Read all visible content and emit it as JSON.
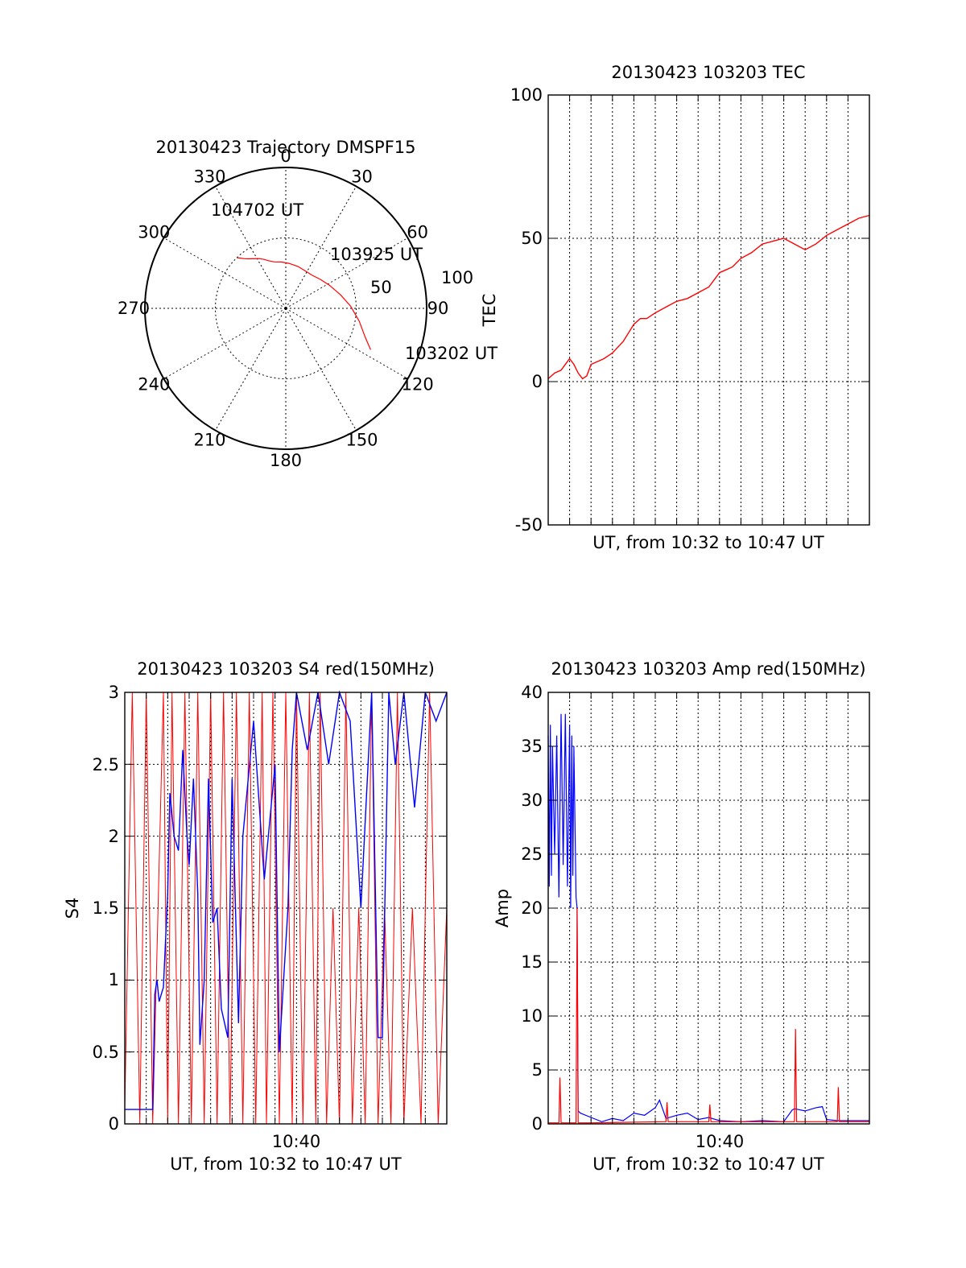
{
  "colors": {
    "red": "#ff0000",
    "blue": "#0000ff",
    "axis": "#000000"
  },
  "chart_data": [
    {
      "type": "polar",
      "title": "20130423 Trajectory DMSPF15",
      "angle_ticks": [
        "0",
        "30",
        "60",
        "90",
        "120",
        "150",
        "180",
        "210",
        "240",
        "270",
        "300",
        "330"
      ],
      "radius_labels": [
        "50",
        "100"
      ],
      "rlim": [
        0,
        100
      ],
      "grid": true,
      "series": [
        {
          "color": "red",
          "points": [
            [
              67,
              116
            ],
            [
              60,
              110
            ],
            [
              53,
              100
            ],
            [
              46,
              88
            ],
            [
              40,
              76
            ],
            [
              35,
              62
            ],
            [
              32,
              50
            ],
            [
              30,
              38
            ],
            [
              30,
              27
            ],
            [
              31,
              16
            ],
            [
              32,
              4
            ],
            [
              33,
              -5
            ],
            [
              34,
              -14
            ],
            [
              36,
              -20
            ],
            [
              38,
              -24
            ],
            [
              40,
              -28
            ],
            [
              42,
              -33
            ],
            [
              44,
              -37
            ],
            [
              46,
              -40
            ],
            [
              48,
              -42
            ],
            [
              50,
              -44
            ]
          ]
        }
      ],
      "annotations": [
        "104702 UT",
        "103925 UT",
        "103202 UT"
      ]
    },
    {
      "type": "line",
      "title": "20130423 103203 TEC",
      "xlabel": "UT, from 10:32 to 10:47 UT",
      "ylabel": "TEC",
      "xlim": [
        0,
        15
      ],
      "ylim": [
        -50,
        100
      ],
      "yticks": [
        "-50",
        "0",
        "50",
        "100"
      ],
      "grid": true,
      "series": [
        {
          "color": "red",
          "x": [
            0,
            0.3,
            0.6,
            0.9,
            1.0,
            1.2,
            1.4,
            1.6,
            1.8,
            2.0,
            2.3,
            2.6,
            3.0,
            3.5,
            4.0,
            4.3,
            4.6,
            5.0,
            5.5,
            6.0,
            6.5,
            7.0,
            7.5,
            8.0,
            8.3,
            8.6,
            9.0,
            9.5,
            10.0,
            10.5,
            11.0,
            11.5,
            12.0,
            12.5,
            13.0,
            13.5,
            14.0,
            14.5,
            15.0
          ],
          "y": [
            1,
            3,
            4,
            7,
            8,
            6,
            3,
            1,
            2,
            6,
            7,
            8,
            10,
            14,
            20,
            22,
            22,
            24,
            26,
            28,
            29,
            31,
            33,
            38,
            39,
            40,
            43,
            45,
            48,
            49,
            50,
            48,
            46,
            48,
            51,
            53,
            55,
            57,
            58
          ]
        }
      ]
    },
    {
      "type": "line",
      "title": "20130423 103203 S4 red(150MHz)",
      "xlabel": "UT, from 10:32 to 10:47 UT",
      "ylabel": "S4",
      "xlim": [
        0,
        15
      ],
      "ylim": [
        0,
        3
      ],
      "yticks": [
        "0",
        "0.5",
        "1",
        "1.5",
        "2",
        "2.5",
        "3"
      ],
      "xticks": [
        {
          "value": 8,
          "label": "10:40"
        }
      ],
      "grid": true,
      "series": [
        {
          "name": "",
          "color": "red",
          "x": [
            0,
            0.35,
            0.7,
            1.0,
            1.3,
            1.8,
            2.0,
            2.2,
            2.5,
            2.8,
            3.1,
            3.4,
            3.7,
            4.0,
            4.3,
            4.6,
            4.9,
            5.2,
            5.5,
            5.8,
            6.1,
            6.4,
            6.6,
            6.9,
            7.2,
            7.5,
            7.8,
            8.0,
            8.3,
            8.6,
            8.9,
            9.1,
            9.4,
            9.7,
            10.0,
            10.3,
            10.6,
            10.9,
            11.2,
            11.5,
            11.8,
            12.1,
            12.4,
            12.7,
            13.0,
            13.4,
            13.8,
            14.2,
            14.6,
            15.0
          ],
          "y": [
            0.1,
            3,
            0,
            3,
            0,
            3,
            0,
            3,
            0,
            3,
            0,
            3,
            0,
            3,
            0,
            3,
            0,
            3,
            0,
            3,
            0,
            3,
            0,
            3,
            0,
            3,
            0,
            3,
            0,
            3,
            0,
            3,
            0,
            1.5,
            0,
            3,
            0,
            1.5,
            0,
            3,
            0,
            1.5,
            0,
            3,
            0,
            1.5,
            0,
            3,
            0,
            1.5
          ]
        },
        {
          "name": "",
          "color": "blue",
          "x": [
            0,
            0.5,
            1.0,
            1.3,
            1.4,
            1.5,
            1.6,
            1.7,
            1.8,
            2.0,
            2.1,
            2.3,
            2.5,
            2.7,
            2.9,
            3.0,
            3.2,
            3.4,
            3.5,
            3.7,
            3.9,
            4.1,
            4.3,
            4.5,
            4.8,
            5.0,
            5.3,
            5.5,
            6.0,
            6.5,
            7.0,
            7.2,
            7.4,
            7.6,
            7.8,
            8.0,
            8.5,
            9.0,
            9.5,
            10.0,
            10.5,
            11.0,
            11.5,
            11.8,
            12.0,
            12.3,
            12.6,
            13.0,
            13.5,
            14.0,
            14.5,
            15.0
          ],
          "y": [
            0.1,
            0.1,
            0.1,
            0.1,
            0.9,
            1.0,
            0.85,
            0.9,
            0.95,
            1.6,
            2.3,
            2.0,
            1.9,
            2.6,
            2.0,
            1.8,
            2.4,
            1.6,
            0.55,
            1.0,
            2.4,
            1.4,
            1.5,
            0.8,
            0.6,
            2.4,
            0.7,
            2.0,
            2.8,
            1.7,
            2.5,
            0.5,
            1.0,
            1.5,
            2.6,
            3.0,
            2.6,
            3.0,
            2.5,
            3.0,
            2.8,
            1.5,
            3.0,
            0.6,
            0.6,
            3.0,
            2.5,
            3.0,
            2.2,
            3.0,
            2.8,
            3.0
          ]
        }
      ]
    },
    {
      "type": "line",
      "title": "20130423 103203 Amp red(150MHz)",
      "xlabel": "UT, from 10:32 to 10:47 UT",
      "ylabel": "Amp",
      "xlim": [
        0,
        15
      ],
      "ylim": [
        0,
        40
      ],
      "yticks": [
        "0",
        "5",
        "10",
        "15",
        "20",
        "25",
        "30",
        "35",
        "40"
      ],
      "xticks": [
        {
          "value": 8,
          "label": "10:40"
        }
      ],
      "grid": true,
      "series": [
        {
          "name": "",
          "color": "red",
          "x": [
            0,
            0.5,
            0.55,
            0.6,
            1.0,
            1.3,
            1.35,
            1.4,
            2.0,
            5.5,
            5.55,
            5.6,
            7.5,
            7.55,
            7.6,
            11.5,
            11.55,
            11.6,
            13.5,
            13.55,
            13.6,
            15.0
          ],
          "y": [
            0.1,
            0.1,
            4.3,
            0.1,
            0.1,
            0.1,
            20.0,
            0.1,
            0.1,
            0.2,
            2.0,
            0.2,
            0.2,
            1.8,
            0.2,
            0.2,
            8.8,
            0.2,
            0.2,
            3.4,
            0.2,
            0.2
          ]
        },
        {
          "name": "",
          "color": "blue",
          "x": [
            0,
            0.05,
            0.1,
            0.15,
            0.2,
            0.3,
            0.4,
            0.5,
            0.6,
            0.7,
            0.8,
            0.9,
            1.0,
            1.05,
            1.1,
            1.15,
            1.2,
            1.3,
            1.35,
            1.4,
            1.5,
            2.0,
            2.5,
            3.0,
            3.5,
            4.0,
            4.5,
            5.0,
            5.2,
            5.5,
            6.0,
            6.5,
            7.0,
            7.5,
            8.0,
            9.0,
            10.0,
            11.0,
            11.4,
            11.5,
            12.0,
            12.5,
            12.8,
            13.0,
            13.5,
            14.0,
            15.0
          ],
          "y": [
            36,
            22,
            37,
            23,
            35,
            25,
            36,
            21,
            38,
            24,
            38,
            22,
            37,
            20,
            36,
            23,
            35,
            21,
            20,
            1.2,
            1.0,
            0.6,
            0.2,
            0.5,
            0.3,
            1.0,
            0.8,
            1.5,
            2.2,
            0.5,
            0.8,
            1.0,
            0.4,
            0.6,
            0.3,
            0.2,
            0.3,
            0.2,
            1.3,
            1.4,
            1.2,
            1.5,
            1.6,
            0.4,
            0.3,
            0.3,
            0.3
          ]
        }
      ]
    }
  ]
}
